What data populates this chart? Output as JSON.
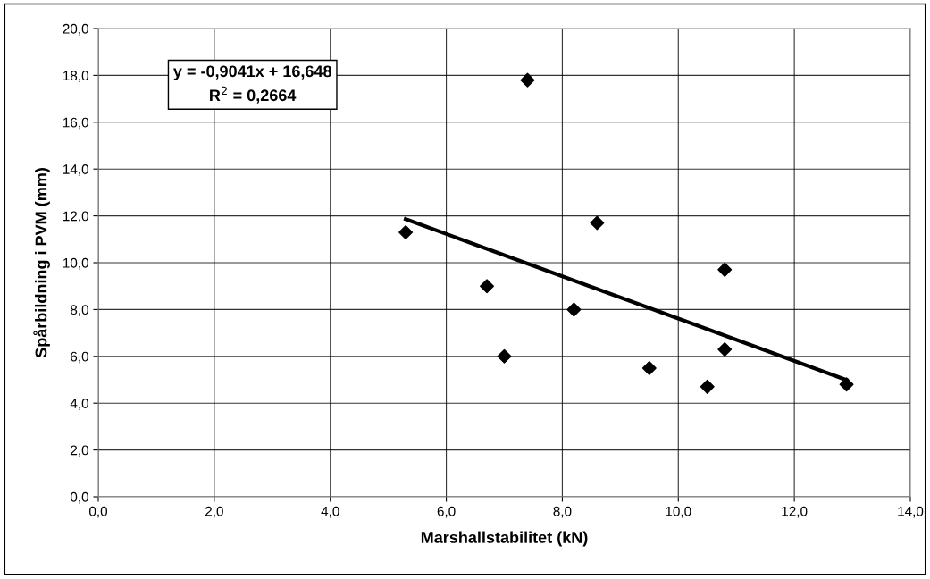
{
  "chart_data": {
    "type": "scatter",
    "xlabel": "Marshallstabilitet (kN)",
    "ylabel": "Spårbildning i PVM (mm)",
    "annotations": [
      "y = -0,9041x + 16,648\nR$^{2}$ = 0,2664"
    ],
    "xlim": [
      0,
      14
    ],
    "ylim": [
      0,
      20
    ],
    "xticks": [
      {
        "value": 0,
        "label": "0,0"
      },
      {
        "value": 2,
        "label": "2,0"
      },
      {
        "value": 4,
        "label": "4,0"
      },
      {
        "value": 6,
        "label": "6,0"
      },
      {
        "value": 8,
        "label": "8,0"
      },
      {
        "value": 10,
        "label": "10,0"
      },
      {
        "value": 12,
        "label": "12,0"
      },
      {
        "value": 14,
        "label": "14,0"
      }
    ],
    "yticks": [
      {
        "value": 0,
        "label": "0,0"
      },
      {
        "value": 2,
        "label": "2,0"
      },
      {
        "value": 4,
        "label": "4,0"
      },
      {
        "value": 6,
        "label": "6,0"
      },
      {
        "value": 8,
        "label": "8,0"
      },
      {
        "value": 10,
        "label": "10,0"
      },
      {
        "value": 12,
        "label": "12,0"
      },
      {
        "value": 14,
        "label": "14,0"
      },
      {
        "value": 16,
        "label": "16,0"
      },
      {
        "value": 18,
        "label": "18,0"
      },
      {
        "value": 20,
        "label": "20,0"
      }
    ],
    "grid": true,
    "marker": "diamond",
    "series": [
      {
        "color": "#000000",
        "x": [
          5.3,
          7.4,
          8.6,
          6.7,
          8.2,
          7.0,
          9.5,
          10.8,
          10.8,
          10.5,
          12.9
        ],
        "values": [
          11.3,
          17.8,
          11.7,
          9.0,
          8.0,
          6.0,
          5.5,
          9.7,
          6.3,
          4.7,
          4.8
        ]
      },
      {
        "type": "line",
        "color": "#000000",
        "x": [
          5.3,
          12.9
        ],
        "values": [
          11.86,
          4.99
        ],
        "marker": "none",
        "line_style": "solid"
      }
    ]
  }
}
